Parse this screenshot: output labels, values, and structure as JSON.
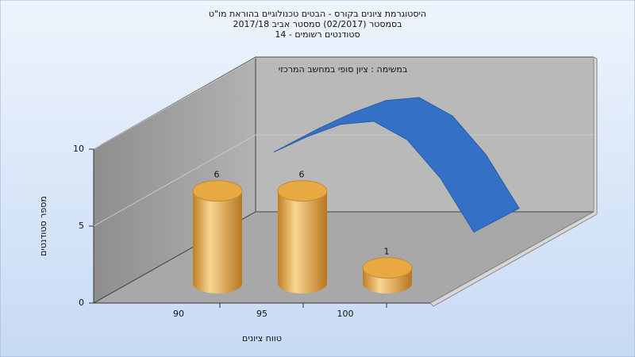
{
  "chart_data": {
    "type": "bar",
    "title": [
      "היסטוגרמת ציונים בקורס - הבטים טכנולוגיים בהוראת מו\"ט",
      "בסמסטר  (02/2017)  סמסטר אביב 2017/18",
      "סטודנטים רשומים - 14"
    ],
    "annotation": "במשימה : ציון סופי במחשב המרכזי",
    "y_label": "מספר סטודנטים",
    "x_label": "טווח ציונים",
    "categories": [
      "90",
      "95",
      "100"
    ],
    "series": [
      {
        "type": "bar",
        "color": "#e2a544",
        "values": [
          6,
          6,
          1
        ]
      },
      {
        "type": "line",
        "color": "#3470c6",
        "x": [
          90,
          92,
          94,
          96,
          98,
          100,
          102
        ],
        "values": [
          6.2,
          7.2,
          8,
          8.2,
          7,
          4.5,
          1
        ]
      }
    ],
    "ylim": [
      0,
      10
    ],
    "yticks": [
      0,
      5,
      10
    ],
    "grid": true
  }
}
